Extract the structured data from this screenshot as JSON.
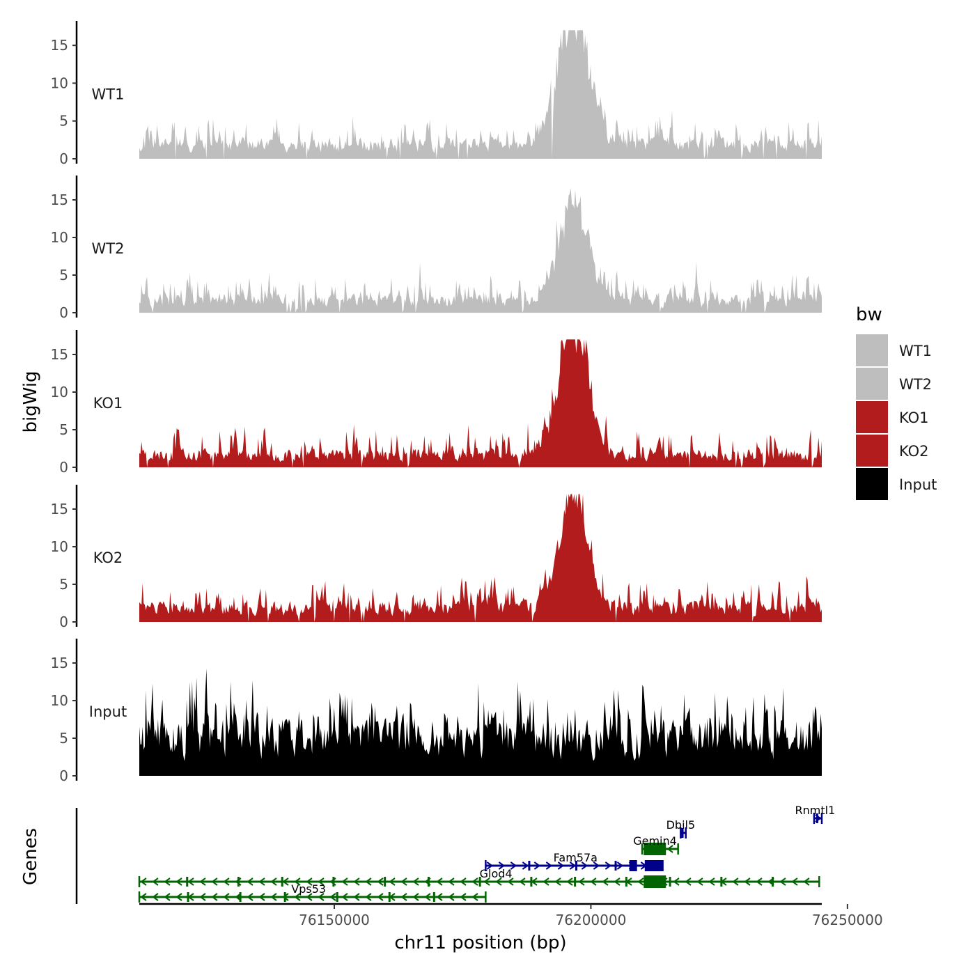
{
  "chart_data": {
    "type": "area",
    "title": "",
    "ylabel": "bigWig",
    "xlabel": "chr11 position (bp)",
    "ylim": [
      0,
      17.5
    ],
    "yticks": [
      0,
      5,
      10,
      15
    ],
    "xlim": [
      76112000,
      76245000
    ],
    "xticks": [
      76150000,
      76200000,
      76250000
    ],
    "xtick_labels": [
      "76150000",
      "76200000",
      "76250000"
    ],
    "series": [
      {
        "name": "WT1",
        "label": "WT1",
        "color": "#bebebe",
        "baseline": 1.8,
        "peak": 15.0,
        "noise": 3.8,
        "seed": 11
      },
      {
        "name": "WT2",
        "label": "WT2",
        "color": "#bebebe",
        "baseline": 1.6,
        "peak": 10.5,
        "noise": 3.5,
        "seed": 23
      },
      {
        "name": "KO1",
        "label": "KO1",
        "color": "#b21c1c",
        "baseline": 1.6,
        "peak": 14.0,
        "noise": 3.6,
        "seed": 37
      },
      {
        "name": "KO2",
        "label": "KO2",
        "color": "#b21c1c",
        "baseline": 1.8,
        "peak": 11.5,
        "noise": 3.7,
        "seed": 41
      },
      {
        "name": "Input",
        "label": "Input",
        "color": "#000000",
        "baseline": 5.0,
        "peak": 0.0,
        "noise": 6.5,
        "seed": 53
      }
    ],
    "peak_region": [
      76193000,
      76200000
    ],
    "data_range": [
      76112000,
      76245000
    ],
    "genes_track": {
      "title": "Genes",
      "genes": [
        {
          "name": "Rnmtl1",
          "start": 76243500,
          "end": 76245000,
          "strand": "+",
          "color": "#00008b",
          "row": 4,
          "label_pos": 76243700
        },
        {
          "name": "Dbil5",
          "start": 76217500,
          "end": 76218500,
          "strand": "+",
          "color": "#00008b",
          "row": 3,
          "label_pos": 76217500
        },
        {
          "name": "Gemin4",
          "start": 76210000,
          "end": 76217000,
          "strand": "-",
          "color": "#006400",
          "row": 2,
          "label_pos": 76212500
        },
        {
          "name": "Fam57a",
          "start": 76179500,
          "end": 76214000,
          "strand": "+",
          "color": "#00008b",
          "row": 1,
          "label_pos": 76197000
        },
        {
          "name": "Glod4",
          "start": 76112000,
          "end": 76244500,
          "strand": "-",
          "color": "#006400",
          "row": 0,
          "label_pos": 76181500
        },
        {
          "name": "Vps53",
          "start": 76112000,
          "end": 76179500,
          "strand": "-",
          "color": "#006400",
          "row": -1,
          "label_pos": 76145000
        }
      ]
    },
    "legend": {
      "title": "bw",
      "position": "right",
      "entries": [
        {
          "label": "WT1",
          "color": "#bebebe"
        },
        {
          "label": "WT2",
          "color": "#bebebe"
        },
        {
          "label": "KO1",
          "color": "#b21c1c"
        },
        {
          "label": "KO2",
          "color": "#b21c1c"
        },
        {
          "label": "Input",
          "color": "#000000"
        }
      ]
    }
  }
}
